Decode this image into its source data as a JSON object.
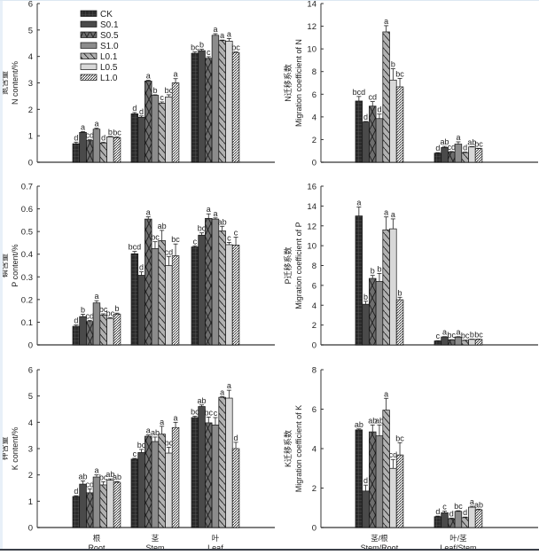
{
  "legend": {
    "items": [
      "CK",
      "S0.1",
      "S0.5",
      "S1.0",
      "L0.1",
      "L0.5",
      "L1.0"
    ]
  },
  "series_styles": [
    {
      "name": "CK",
      "fill": "#2b2b2b",
      "pattern": "grid"
    },
    {
      "name": "S0.1",
      "fill": "#4a4a4a",
      "pattern": "solid"
    },
    {
      "name": "S0.5",
      "fill": "#6e6e6e",
      "pattern": "cross"
    },
    {
      "name": "S1.0",
      "fill": "#8c8c8c",
      "pattern": "solid"
    },
    {
      "name": "L0.1",
      "fill": "#b0b0b0",
      "pattern": "backslash"
    },
    {
      "name": "L0.5",
      "fill": "#d8d8d8",
      "pattern": "solid"
    },
    {
      "name": "L1.0",
      "fill": "#ffffff",
      "pattern": "slash"
    }
  ],
  "chart_data": [
    {
      "id": "n-content",
      "type": "bar",
      "ylabel_cn": "氮含量",
      "ylabel": "N content/%",
      "ylim": [
        0,
        6
      ],
      "yticks": [
        "0",
        "1",
        "2",
        "3",
        "4",
        "5",
        "6"
      ],
      "categories": [],
      "show_legend": true,
      "legend_position": "top-left",
      "series": [
        {
          "name": "CK",
          "values": [
            0.7,
            1.83,
            4.12
          ],
          "errors": [
            0.06,
            0.05,
            0.05
          ],
          "letters": [
            "d",
            "d",
            "bc"
          ]
        },
        {
          "name": "S0.1",
          "values": [
            1.13,
            1.7,
            4.22
          ],
          "errors": [
            0.03,
            0.05,
            0.05
          ],
          "letters": [
            "a",
            "d",
            "b"
          ]
        },
        {
          "name": "S0.5",
          "values": [
            0.82,
            3.07,
            3.93
          ],
          "errors": [
            0.03,
            0.03,
            0.06
          ],
          "letters": [
            "cd",
            "a",
            "c"
          ]
        },
        {
          "name": "S1.0",
          "values": [
            1.25,
            2.53,
            4.8
          ],
          "errors": [
            0.04,
            0.02,
            0.06
          ],
          "letters": [
            "a",
            "b",
            "a"
          ]
        },
        {
          "name": "L0.1",
          "values": [
            0.73,
            2.23,
            4.6
          ],
          "errors": [
            0.03,
            0.05,
            0.02
          ],
          "letters": [
            "d",
            "c",
            "a"
          ]
        },
        {
          "name": "L0.5",
          "values": [
            0.96,
            2.47,
            4.58
          ],
          "errors": [
            0.02,
            0.08,
            0.1
          ],
          "letters": [
            "b",
            "bc",
            "a"
          ]
        },
        {
          "name": "L1.0",
          "values": [
            0.93,
            3.0,
            4.15
          ],
          "errors": [
            0.03,
            0.16,
            0.02
          ],
          "letters": [
            "bc",
            "a",
            "bc"
          ]
        }
      ]
    },
    {
      "id": "n-migration",
      "type": "bar",
      "ylabel_cn": "N迁移系数",
      "ylabel": "Migration coefficient of N",
      "ylim": [
        0,
        14
      ],
      "yticks": [
        "0",
        "2",
        "4",
        "6",
        "8",
        "10",
        "12",
        "14"
      ],
      "categories": [],
      "show_legend": false,
      "series": [
        {
          "name": "CK",
          "values": [
            5.4,
            0.8
          ],
          "errors": [
            0.4,
            0.05
          ],
          "letters": [
            "bcd",
            "d"
          ]
        },
        {
          "name": "S0.1",
          "values": [
            3.55,
            1.3
          ],
          "errors": [
            0.05,
            0.1
          ],
          "letters": [
            "d",
            "ab"
          ]
        },
        {
          "name": "S0.5",
          "values": [
            4.95,
            0.9
          ],
          "errors": [
            0.4,
            0.05
          ],
          "letters": [
            "cd",
            "cd"
          ]
        },
        {
          "name": "S1.0",
          "values": [
            3.85,
            1.6
          ],
          "errors": [
            0.4,
            0.2
          ],
          "letters": [
            "d",
            "a"
          ]
        },
        {
          "name": "L0.1",
          "values": [
            11.5,
            0.85
          ],
          "errors": [
            0.55,
            0.05
          ],
          "letters": [
            "a",
            "d"
          ]
        },
        {
          "name": "L0.5",
          "values": [
            7.25,
            1.35
          ],
          "errors": [
            1.0,
            0.03
          ],
          "letters": [
            "b",
            "ab"
          ]
        },
        {
          "name": "L1.0",
          "values": [
            6.65,
            1.2
          ],
          "errors": [
            0.75,
            0.03
          ],
          "letters": [
            "bc",
            "bc"
          ]
        }
      ]
    },
    {
      "id": "p-content",
      "type": "bar",
      "ylabel_cn": "磷含量",
      "ylabel": "P content/%",
      "ylim": [
        0,
        0.7
      ],
      "yticks": [
        "0",
        "0.1",
        "0.2",
        "0.3",
        "0.4",
        "0.5",
        "0.6",
        "0.7"
      ],
      "categories": [],
      "show_legend": false,
      "series": [
        {
          "name": "CK",
          "values": [
            0.082,
            0.402,
            0.432
          ],
          "errors": [
            0.006,
            0.01,
            0.005
          ],
          "letters": [
            "d",
            "bcd",
            "c"
          ]
        },
        {
          "name": "S0.1",
          "values": [
            0.125,
            0.307,
            0.484
          ],
          "errors": [
            0.01,
            0.015,
            0.01
          ],
          "letters": [
            "b",
            "d",
            "bc"
          ]
        },
        {
          "name": "S0.5",
          "values": [
            0.103,
            0.555,
            0.558
          ],
          "errors": [
            0.005,
            0.01,
            0.02
          ],
          "letters": [
            "cd",
            "a",
            "a"
          ]
        },
        {
          "name": "S1.0",
          "values": [
            0.185,
            0.425,
            0.555
          ],
          "errors": [
            0.01,
            0.03,
            0.005
          ],
          "letters": [
            "a",
            "bc",
            "a"
          ]
        },
        {
          "name": "L0.1",
          "values": [
            0.132,
            0.46,
            0.503
          ],
          "errors": [
            0.005,
            0.045,
            0.02
          ],
          "letters": [
            "bc",
            "ab",
            "ab"
          ]
        },
        {
          "name": "L0.5",
          "values": [
            0.117,
            0.35,
            0.442
          ],
          "errors": [
            0.003,
            0.04,
            0.01
          ],
          "letters": [
            "bc",
            "cd",
            "c"
          ]
        },
        {
          "name": "L1.0",
          "values": [
            0.136,
            0.393,
            0.44
          ],
          "errors": [
            0.004,
            0.052,
            0.035
          ],
          "letters": [
            "b",
            "bc",
            "c"
          ]
        }
      ]
    },
    {
      "id": "p-migration",
      "type": "bar",
      "ylabel_cn": "P迁移系数",
      "ylabel": "Migration coefficient of P",
      "ylim": [
        0,
        16
      ],
      "yticks": [
        "0",
        "2",
        "4",
        "6",
        "8",
        "10",
        "12",
        "14",
        "16"
      ],
      "categories": [],
      "show_legend": false,
      "series": [
        {
          "name": "CK",
          "values": [
            13.0,
            0.4
          ],
          "errors": [
            0.9,
            0.03
          ],
          "letters": [
            "a",
            "c"
          ]
        },
        {
          "name": "S0.1",
          "values": [
            4.1,
            0.8
          ],
          "errors": [
            0.3,
            0.03
          ],
          "letters": [
            "b",
            "a"
          ]
        },
        {
          "name": "S0.5",
          "values": [
            6.7,
            0.5
          ],
          "errors": [
            0.3,
            0.03
          ],
          "letters": [
            "b",
            "bc"
          ]
        },
        {
          "name": "S1.0",
          "values": [
            6.4,
            0.78
          ],
          "errors": [
            0.8,
            0.05
          ],
          "letters": [
            "b",
            "a"
          ]
        },
        {
          "name": "L0.1",
          "values": [
            11.6,
            0.45
          ],
          "errors": [
            1.3,
            0.03
          ],
          "letters": [
            "a",
            "bc"
          ]
        },
        {
          "name": "L0.5",
          "values": [
            11.7,
            0.55
          ],
          "errors": [
            1.0,
            0.03
          ],
          "letters": [
            "a",
            "b"
          ]
        },
        {
          "name": "L1.0",
          "values": [
            4.55,
            0.55
          ],
          "errors": [
            0.25,
            0.03
          ],
          "letters": [
            "b",
            "bc"
          ]
        }
      ]
    },
    {
      "id": "k-content",
      "type": "bar",
      "ylabel_cn": "钾含量",
      "ylabel": "K content/%",
      "ylim": [
        0,
        6
      ],
      "yticks": [
        "0",
        "1",
        "2",
        "3",
        "4",
        "5",
        "6"
      ],
      "categories": [
        {
          "cn": "根",
          "en": "Root"
        },
        {
          "cn": "茎",
          "en": "Stem"
        },
        {
          "cn": "叶",
          "en": "Leaf"
        }
      ],
      "show_legend": false,
      "series": [
        {
          "name": "CK",
          "values": [
            1.18,
            2.6,
            4.18
          ],
          "errors": [
            0.03,
            0.03,
            0.05
          ],
          "letters": [
            "d",
            "c",
            "bc"
          ]
        },
        {
          "name": "S0.1",
          "values": [
            1.65,
            2.85,
            4.6
          ],
          "errors": [
            0.12,
            0.12,
            0.06
          ],
          "letters": [
            "ab",
            "bc",
            "ab"
          ]
        },
        {
          "name": "S0.5",
          "values": [
            1.32,
            3.47,
            3.98
          ],
          "errors": [
            0.15,
            0.05,
            0.22
          ],
          "letters": [
            "cd",
            "a",
            "bc"
          ]
        },
        {
          "name": "S1.0",
          "values": [
            1.92,
            3.27,
            3.9
          ],
          "errors": [
            0.08,
            0.17,
            0.28
          ],
          "letters": [
            "a",
            "ab",
            "c"
          ]
        },
        {
          "name": "L0.1",
          "values": [
            1.62,
            3.55,
            4.95
          ],
          "errors": [
            0.12,
            0.3,
            0.03
          ],
          "letters": [
            "bc",
            "a",
            "a"
          ]
        },
        {
          "name": "L0.5",
          "values": [
            1.8,
            2.83,
            4.92
          ],
          "errors": [
            0.05,
            0.22,
            0.3
          ],
          "letters": [
            "ab",
            "bc",
            "a"
          ]
        },
        {
          "name": "L1.0",
          "values": [
            1.72,
            3.8,
            3.0
          ],
          "errors": [
            0.03,
            0.2,
            0.24
          ],
          "letters": [
            "ab",
            "a",
            "d"
          ]
        }
      ]
    },
    {
      "id": "k-migration",
      "type": "bar",
      "ylabel_cn": "K迁移系数",
      "ylabel": "Migration coefficient of K",
      "ylim": [
        0,
        8
      ],
      "yticks": [
        "0",
        "2",
        "4",
        "6",
        "8"
      ],
      "categories": [
        {
          "cn": "茎/根",
          "en": "Stem/Root"
        },
        {
          "cn": "叶/茎",
          "en": "Leaf/Stem"
        }
      ],
      "show_legend": false,
      "series": [
        {
          "name": "CK",
          "values": [
            4.95,
            0.55
          ],
          "errors": [
            0.05,
            0.03
          ],
          "letters": [
            "ab",
            "d"
          ]
        },
        {
          "name": "S0.1",
          "values": [
            1.85,
            0.75
          ],
          "errors": [
            0.3,
            0.08
          ],
          "letters": [
            "d",
            "c"
          ]
        },
        {
          "name": "S0.5",
          "values": [
            4.85,
            0.45
          ],
          "errors": [
            0.35,
            0.03
          ],
          "letters": [
            "ab",
            "d"
          ]
        },
        {
          "name": "S1.0",
          "values": [
            4.65,
            0.82
          ],
          "errors": [
            0.55,
            0.03
          ],
          "letters": [
            "ab",
            "bc"
          ]
        },
        {
          "name": "L0.1",
          "values": [
            5.95,
            0.5
          ],
          "errors": [
            0.6,
            0.03
          ],
          "letters": [
            "a",
            "d"
          ]
        },
        {
          "name": "L0.5",
          "values": [
            3.0,
            1.03
          ],
          "errors": [
            0.45,
            0.05
          ],
          "letters": [
            "cd",
            "a"
          ]
        },
        {
          "name": "L1.0",
          "values": [
            3.68,
            0.9
          ],
          "errors": [
            0.62,
            0.03
          ],
          "letters": [
            "bc",
            "ab"
          ]
        }
      ]
    }
  ]
}
